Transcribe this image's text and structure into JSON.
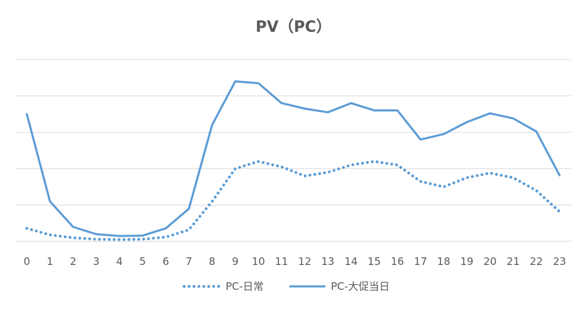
{
  "chart_data": {
    "type": "line",
    "title": "PV（PC）",
    "xlabel": "",
    "ylabel": "",
    "categories": [
      "0",
      "1",
      "2",
      "3",
      "4",
      "5",
      "6",
      "7",
      "8",
      "9",
      "10",
      "11",
      "12",
      "13",
      "14",
      "15",
      "16",
      "17",
      "18",
      "19",
      "20",
      "21",
      "22",
      "23"
    ],
    "y_axis_labels_shown": false,
    "ylim": [
      0,
      5
    ],
    "grid": true,
    "legend_position": "bottom",
    "series": [
      {
        "name": "PC-日常",
        "style": "dotted",
        "color": "#5B9BD5",
        "values": [
          0.36,
          0.18,
          0.1,
          0.06,
          0.05,
          0.06,
          0.12,
          0.32,
          1.1,
          2.0,
          2.2,
          2.05,
          1.8,
          1.9,
          2.1,
          2.2,
          2.1,
          1.65,
          1.5,
          1.75,
          1.88,
          1.75,
          1.4,
          0.82
        ]
      },
      {
        "name": "PC-大促当日",
        "style": "solid",
        "color": "#5B9BD5",
        "values": [
          3.5,
          1.1,
          0.4,
          0.2,
          0.15,
          0.16,
          0.36,
          0.9,
          3.2,
          4.4,
          4.35,
          3.8,
          3.65,
          3.55,
          3.8,
          3.6,
          3.6,
          2.8,
          2.95,
          3.28,
          3.52,
          3.38,
          3.02,
          1.82
        ]
      }
    ]
  }
}
